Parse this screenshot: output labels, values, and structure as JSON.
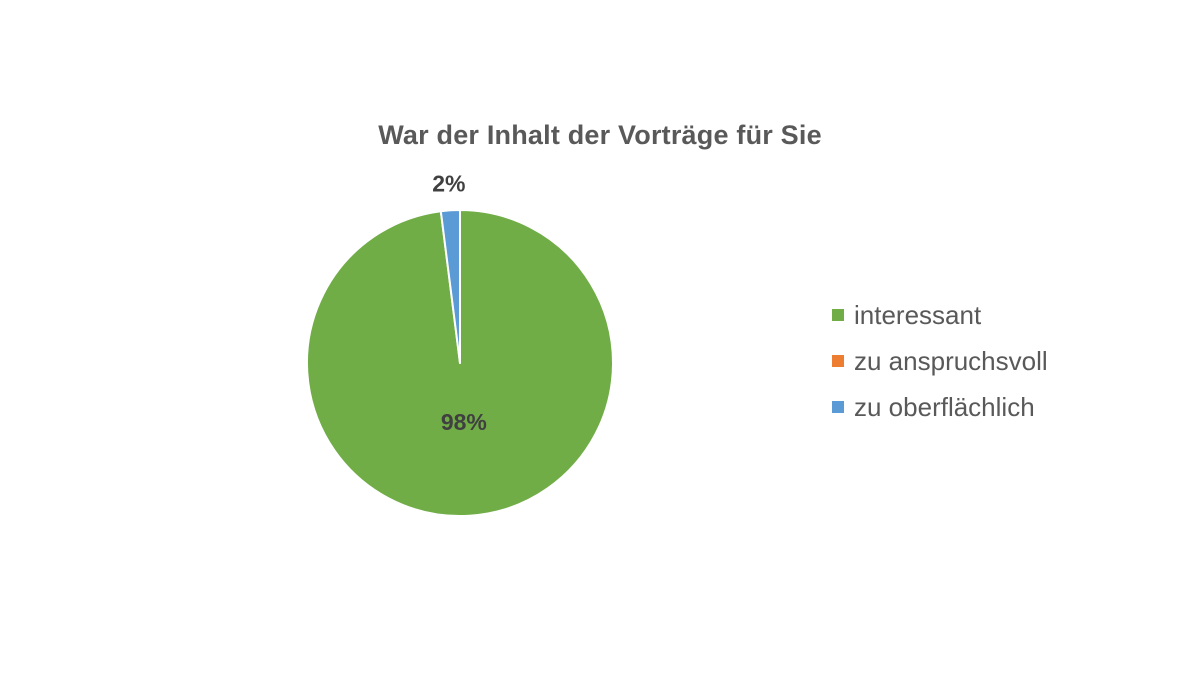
{
  "chart_data": {
    "type": "pie",
    "title": "War der Inhalt der Vorträge für Sie",
    "categories": [
      "interessant",
      "zu anspruchsvoll",
      "zu oberflächlich"
    ],
    "values": [
      98,
      0,
      2
    ],
    "data_labels": [
      "98%",
      "",
      "2%"
    ],
    "colors": [
      "#70AD47",
      "#ED7D31",
      "#5B9BD5"
    ],
    "legend_position": "right"
  }
}
